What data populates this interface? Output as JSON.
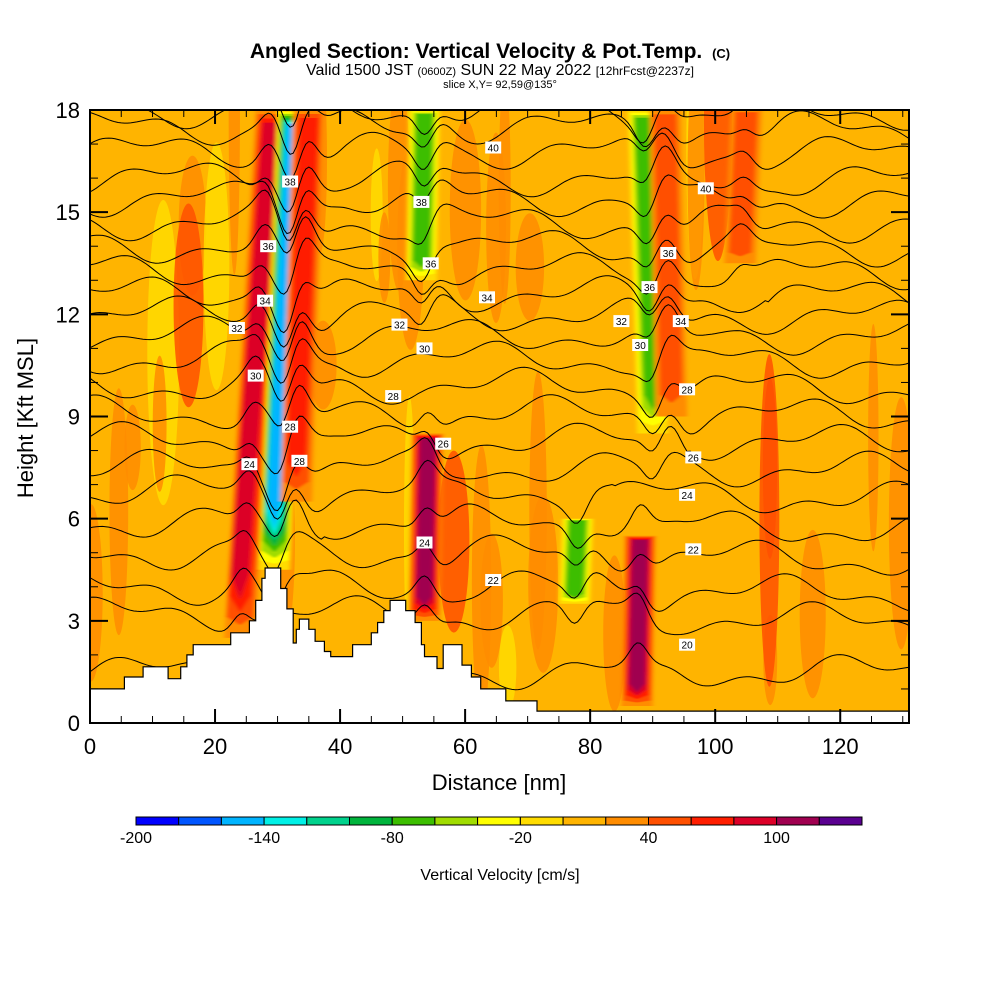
{
  "header": {
    "title": "Angled Section: Vertical Velocity & Pot.Temp.",
    "title_suffix": "(C)",
    "valid_prefix": "Valid 1500 JST",
    "valid_utc": "(0600Z)",
    "valid_date": "SUN 22 May 2022",
    "forecast": "[12hrFcst@2237z]",
    "slice": "slice X,Y= 92,59@135°"
  },
  "chart_data": {
    "type": "heatmap",
    "subtype": "cross-section contour fill with isentrope contours",
    "xlabel": "Distance [nm]",
    "ylabel": "Height [Kft MSL]",
    "xlim": [
      0,
      131
    ],
    "ylim": [
      0,
      18
    ],
    "x_ticks": [
      "0",
      "20",
      "40",
      "60",
      "80",
      "100",
      "120"
    ],
    "x_tick_values": [
      0,
      20,
      40,
      60,
      80,
      100,
      120
    ],
    "y_ticks": [
      "0",
      "3",
      "6",
      "9",
      "12",
      "15",
      "18"
    ],
    "y_tick_values": [
      0,
      3,
      6,
      9,
      12,
      15,
      18
    ],
    "colorbar": {
      "label": "Vertical Velocity [cm/s]",
      "tick_labels": [
        "-200",
        "-140",
        "-80",
        "-20",
        "40",
        "100"
      ],
      "tick_values": [
        -200,
        -140,
        -80,
        -20,
        40,
        100
      ],
      "levels": [
        -200,
        -180,
        -160,
        -140,
        -120,
        -100,
        -80,
        -60,
        -40,
        -20,
        0,
        20,
        40,
        60,
        80,
        100,
        120,
        140
      ],
      "colors": [
        "#0000ff",
        "#0055ff",
        "#00b4ff",
        "#00f0e6",
        "#00d28c",
        "#00b43c",
        "#3cbe00",
        "#a0dc00",
        "#ffff00",
        "#ffdc00",
        "#ffb400",
        "#ff8c00",
        "#ff5000",
        "#ff1e00",
        "#dc0028",
        "#a00050",
        "#5a0090"
      ]
    },
    "background_value": 10,
    "plumes": [
      {
        "name": "updraft-west-1",
        "x_top": 29,
        "x_bottom": 24,
        "y_from": 2.5,
        "y_to": 18,
        "value": 90
      },
      {
        "name": "downdraft-west",
        "x_top": 32.5,
        "x_bottom": 29.5,
        "y_from": 4.5,
        "y_to": 18,
        "value": -150
      },
      {
        "name": "updraft-west-2",
        "x_top": 35,
        "x_bottom": 33,
        "y_from": 6.5,
        "y_to": 18,
        "value": 70
      },
      {
        "name": "downdraft-mid",
        "x_top": 53.5,
        "x_bottom": 53,
        "y_from": 13,
        "y_to": 18,
        "value": -80
      },
      {
        "name": "updraft-mid",
        "x_top": 54,
        "x_bottom": 53.5,
        "y_from": 3,
        "y_to": 8.5,
        "value": 110
      },
      {
        "name": "downdraft-east",
        "x_top": 88.5,
        "x_bottom": 90,
        "y_from": 8.5,
        "y_to": 18,
        "value": -70
      },
      {
        "name": "updraft-east",
        "x_top": 92,
        "x_bottom": 93,
        "y_from": 9,
        "y_to": 18,
        "value": 50
      },
      {
        "name": "updraft-low",
        "x_top": 88,
        "x_bottom": 87.5,
        "y_from": 0.5,
        "y_to": 5.5,
        "value": 120
      },
      {
        "name": "downdraft-low",
        "x_top": 78,
        "x_bottom": 77.5,
        "y_from": 3.5,
        "y_to": 6,
        "value": -70
      },
      {
        "name": "updraft-east-upper",
        "x_top": 105,
        "x_bottom": 104,
        "y_from": 13.5,
        "y_to": 18,
        "value": 50
      }
    ],
    "contours": {
      "variable": "Potential Temperature [C]",
      "levels": [
        20,
        21,
        22,
        23,
        24,
        25,
        26,
        27,
        28,
        29,
        30,
        31,
        32,
        33,
        34,
        35,
        36,
        37,
        38,
        39,
        40,
        41
      ],
      "base_heights_kft": [
        1.5,
        3.2,
        4.0,
        5.0,
        5.9,
        6.8,
        7.5,
        8.3,
        9.1,
        9.9,
        10.7,
        11.4,
        12.0,
        12.6,
        13.3,
        14.0,
        14.7,
        15.4,
        16.0,
        16.8,
        17.5,
        18.0
      ],
      "labels": [
        {
          "text": "38",
          "x": 32,
          "y": 15.9
        },
        {
          "text": "36",
          "x": 28.5,
          "y": 14.0
        },
        {
          "text": "34",
          "x": 28,
          "y": 12.4
        },
        {
          "text": "32",
          "x": 23.5,
          "y": 11.6
        },
        {
          "text": "30",
          "x": 26.5,
          "y": 10.2
        },
        {
          "text": "28",
          "x": 32,
          "y": 8.7
        },
        {
          "text": "28",
          "x": 33.5,
          "y": 7.7
        },
        {
          "text": "24",
          "x": 25.5,
          "y": 7.6
        },
        {
          "text": "38",
          "x": 53,
          "y": 15.3
        },
        {
          "text": "36",
          "x": 54.5,
          "y": 13.5
        },
        {
          "text": "32",
          "x": 49.5,
          "y": 11.7
        },
        {
          "text": "30",
          "x": 53.5,
          "y": 11.0
        },
        {
          "text": "28",
          "x": 48.5,
          "y": 9.6
        },
        {
          "text": "26",
          "x": 56.5,
          "y": 8.2
        },
        {
          "text": "24",
          "x": 53.5,
          "y": 5.3
        },
        {
          "text": "22",
          "x": 64.5,
          "y": 4.2
        },
        {
          "text": "40",
          "x": 64.5,
          "y": 16.9
        },
        {
          "text": "34",
          "x": 63.5,
          "y": 12.5
        },
        {
          "text": "40",
          "x": 98.5,
          "y": 15.7
        },
        {
          "text": "36",
          "x": 92.5,
          "y": 13.8
        },
        {
          "text": "36",
          "x": 89.5,
          "y": 12.8
        },
        {
          "text": "32",
          "x": 85,
          "y": 11.8
        },
        {
          "text": "34",
          "x": 94.5,
          "y": 11.8
        },
        {
          "text": "30",
          "x": 88,
          "y": 11.1
        },
        {
          "text": "28",
          "x": 95.5,
          "y": 9.8
        },
        {
          "text": "26",
          "x": 96.5,
          "y": 7.8
        },
        {
          "text": "24",
          "x": 95.5,
          "y": 6.7
        },
        {
          "text": "22",
          "x": 96.5,
          "y": 5.1
        },
        {
          "text": "20",
          "x": 95.5,
          "y": 2.3
        }
      ]
    },
    "terrain_kft": [
      [
        0,
        1.0
      ],
      [
        5.5,
        1.0
      ],
      [
        5.5,
        1.35
      ],
      [
        8.5,
        1.35
      ],
      [
        8.5,
        1.65
      ],
      [
        12.5,
        1.65
      ],
      [
        12.5,
        1.3
      ],
      [
        14.5,
        1.3
      ],
      [
        14.5,
        1.65
      ],
      [
        15.5,
        1.65
      ],
      [
        15.5,
        2.0
      ],
      [
        16.5,
        2.0
      ],
      [
        16.5,
        2.3
      ],
      [
        22.5,
        2.3
      ],
      [
        22.5,
        2.65
      ],
      [
        25.5,
        2.65
      ],
      [
        25.5,
        3.0
      ],
      [
        26.5,
        3.0
      ],
      [
        26.5,
        3.6
      ],
      [
        27.5,
        3.6
      ],
      [
        27.5,
        4.25
      ],
      [
        28,
        4.25
      ],
      [
        28,
        4.55
      ],
      [
        30.5,
        4.55
      ],
      [
        30.5,
        3.95
      ],
      [
        31.5,
        3.95
      ],
      [
        31.5,
        3.35
      ],
      [
        32.5,
        3.35
      ],
      [
        32.5,
        2.35
      ],
      [
        33,
        2.35
      ],
      [
        33,
        2.75
      ],
      [
        33.5,
        2.75
      ],
      [
        33.5,
        3.05
      ],
      [
        35,
        3.05
      ],
      [
        35,
        2.75
      ],
      [
        36,
        2.75
      ],
      [
        36,
        2.4
      ],
      [
        37.5,
        2.4
      ],
      [
        37.5,
        2.1
      ],
      [
        38.5,
        2.1
      ],
      [
        38.5,
        1.95
      ],
      [
        42,
        1.95
      ],
      [
        42,
        2.3
      ],
      [
        45,
        2.3
      ],
      [
        45,
        2.65
      ],
      [
        46,
        2.65
      ],
      [
        46,
        2.95
      ],
      [
        47,
        2.95
      ],
      [
        47,
        3.3
      ],
      [
        48,
        3.3
      ],
      [
        48,
        3.6
      ],
      [
        50.5,
        3.6
      ],
      [
        50.5,
        3.3
      ],
      [
        52,
        3.3
      ],
      [
        52,
        2.95
      ],
      [
        53,
        2.95
      ],
      [
        53,
        2.3
      ],
      [
        53.5,
        2.3
      ],
      [
        53.5,
        1.95
      ],
      [
        55.5,
        1.95
      ],
      [
        55.5,
        1.6
      ],
      [
        56.5,
        1.6
      ],
      [
        56.5,
        2.3
      ],
      [
        59.5,
        2.3
      ],
      [
        59.5,
        1.7
      ],
      [
        61,
        1.7
      ],
      [
        61,
        1.35
      ],
      [
        62.5,
        1.35
      ],
      [
        62.5,
        1.0
      ],
      [
        66.5,
        1.0
      ],
      [
        66.5,
        0.65
      ],
      [
        71.5,
        0.65
      ],
      [
        71.5,
        0.35
      ],
      [
        131,
        0.35
      ],
      [
        131,
        0
      ],
      [
        0,
        0
      ]
    ]
  }
}
